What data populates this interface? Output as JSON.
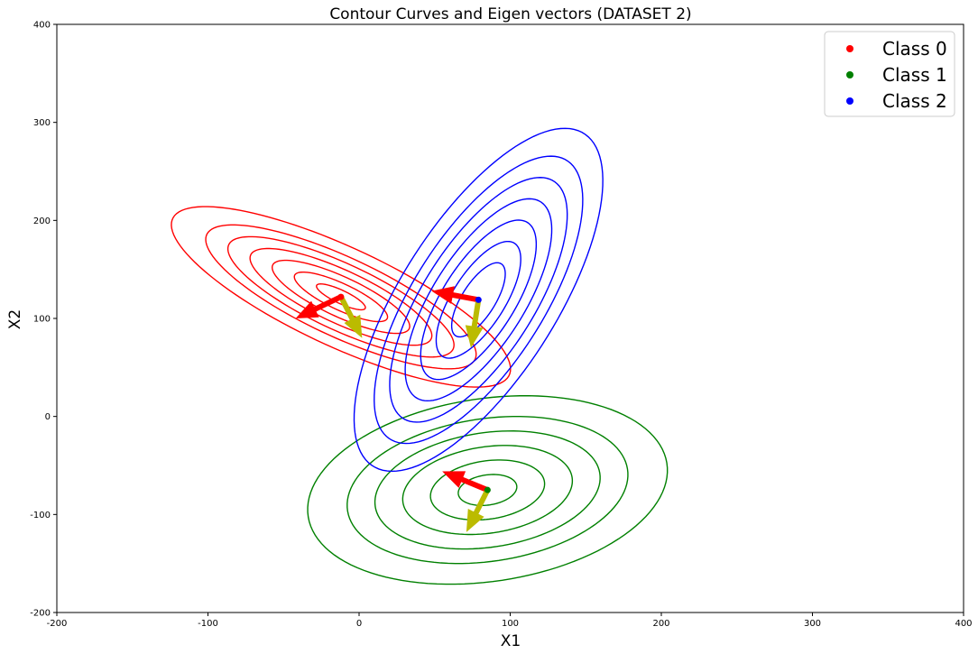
{
  "chart_data": {
    "type": "scatter",
    "title": "Contour Curves and Eigen vectors (DATASET 2)",
    "xlabel": "X1",
    "ylabel": "X2",
    "xlim": [
      -200,
      400
    ],
    "ylim": [
      -200,
      400
    ],
    "xticks": [
      -200,
      -100,
      0,
      100,
      200,
      300,
      400
    ],
    "yticks": [
      -200,
      -100,
      0,
      100,
      200,
      300,
      400
    ],
    "grid": false,
    "legend_position": "top-right",
    "series": [
      {
        "name": "Class 0",
        "color": "#ff0000",
        "mean": [
          -12,
          122
        ],
        "contour_angle_deg": -38,
        "contour_semi_axes": [
          [
            20,
            6
          ],
          [
            38,
            12
          ],
          [
            56,
            18
          ],
          [
            74,
            24
          ],
          [
            92,
            30
          ],
          [
            110,
            36
          ],
          [
            138,
            45
          ]
        ],
        "eigenvectors": [
          {
            "direction_end": [
              -42,
              100
            ],
            "color": "#ff0000"
          },
          {
            "direction_end": [
              2,
              80
            ],
            "color": "#bbbb00"
          }
        ]
      },
      {
        "name": "Class 1",
        "color": "#008000",
        "mean": [
          85,
          -75
        ],
        "contour_angle_deg": 22,
        "contour_semi_axes": [
          [
            20,
            15
          ],
          [
            39,
            29
          ],
          [
            58,
            43
          ],
          [
            77,
            57
          ],
          [
            96,
            71
          ],
          [
            123,
            91
          ]
        ],
        "eigenvectors": [
          {
            "direction_end": [
              55,
              -56
            ],
            "color": "#ff0000"
          },
          {
            "direction_end": [
              71,
              -118
            ],
            "color": "#bbbb00"
          }
        ]
      },
      {
        "name": "Class 2",
        "color": "#0000ff",
        "mean": [
          79,
          119
        ],
        "contour_angle_deg": 70,
        "contour_semi_axes": [
          [
            40,
            12
          ],
          [
            63,
            19
          ],
          [
            86,
            26
          ],
          [
            109,
            33
          ],
          [
            132,
            40
          ],
          [
            155,
            47
          ],
          [
            185,
            56
          ]
        ],
        "eigenvectors": [
          {
            "direction_end": [
              48,
              128
            ],
            "color": "#ff0000"
          },
          {
            "direction_end": [
              74,
              70
            ],
            "color": "#bbbb00"
          }
        ]
      }
    ]
  }
}
